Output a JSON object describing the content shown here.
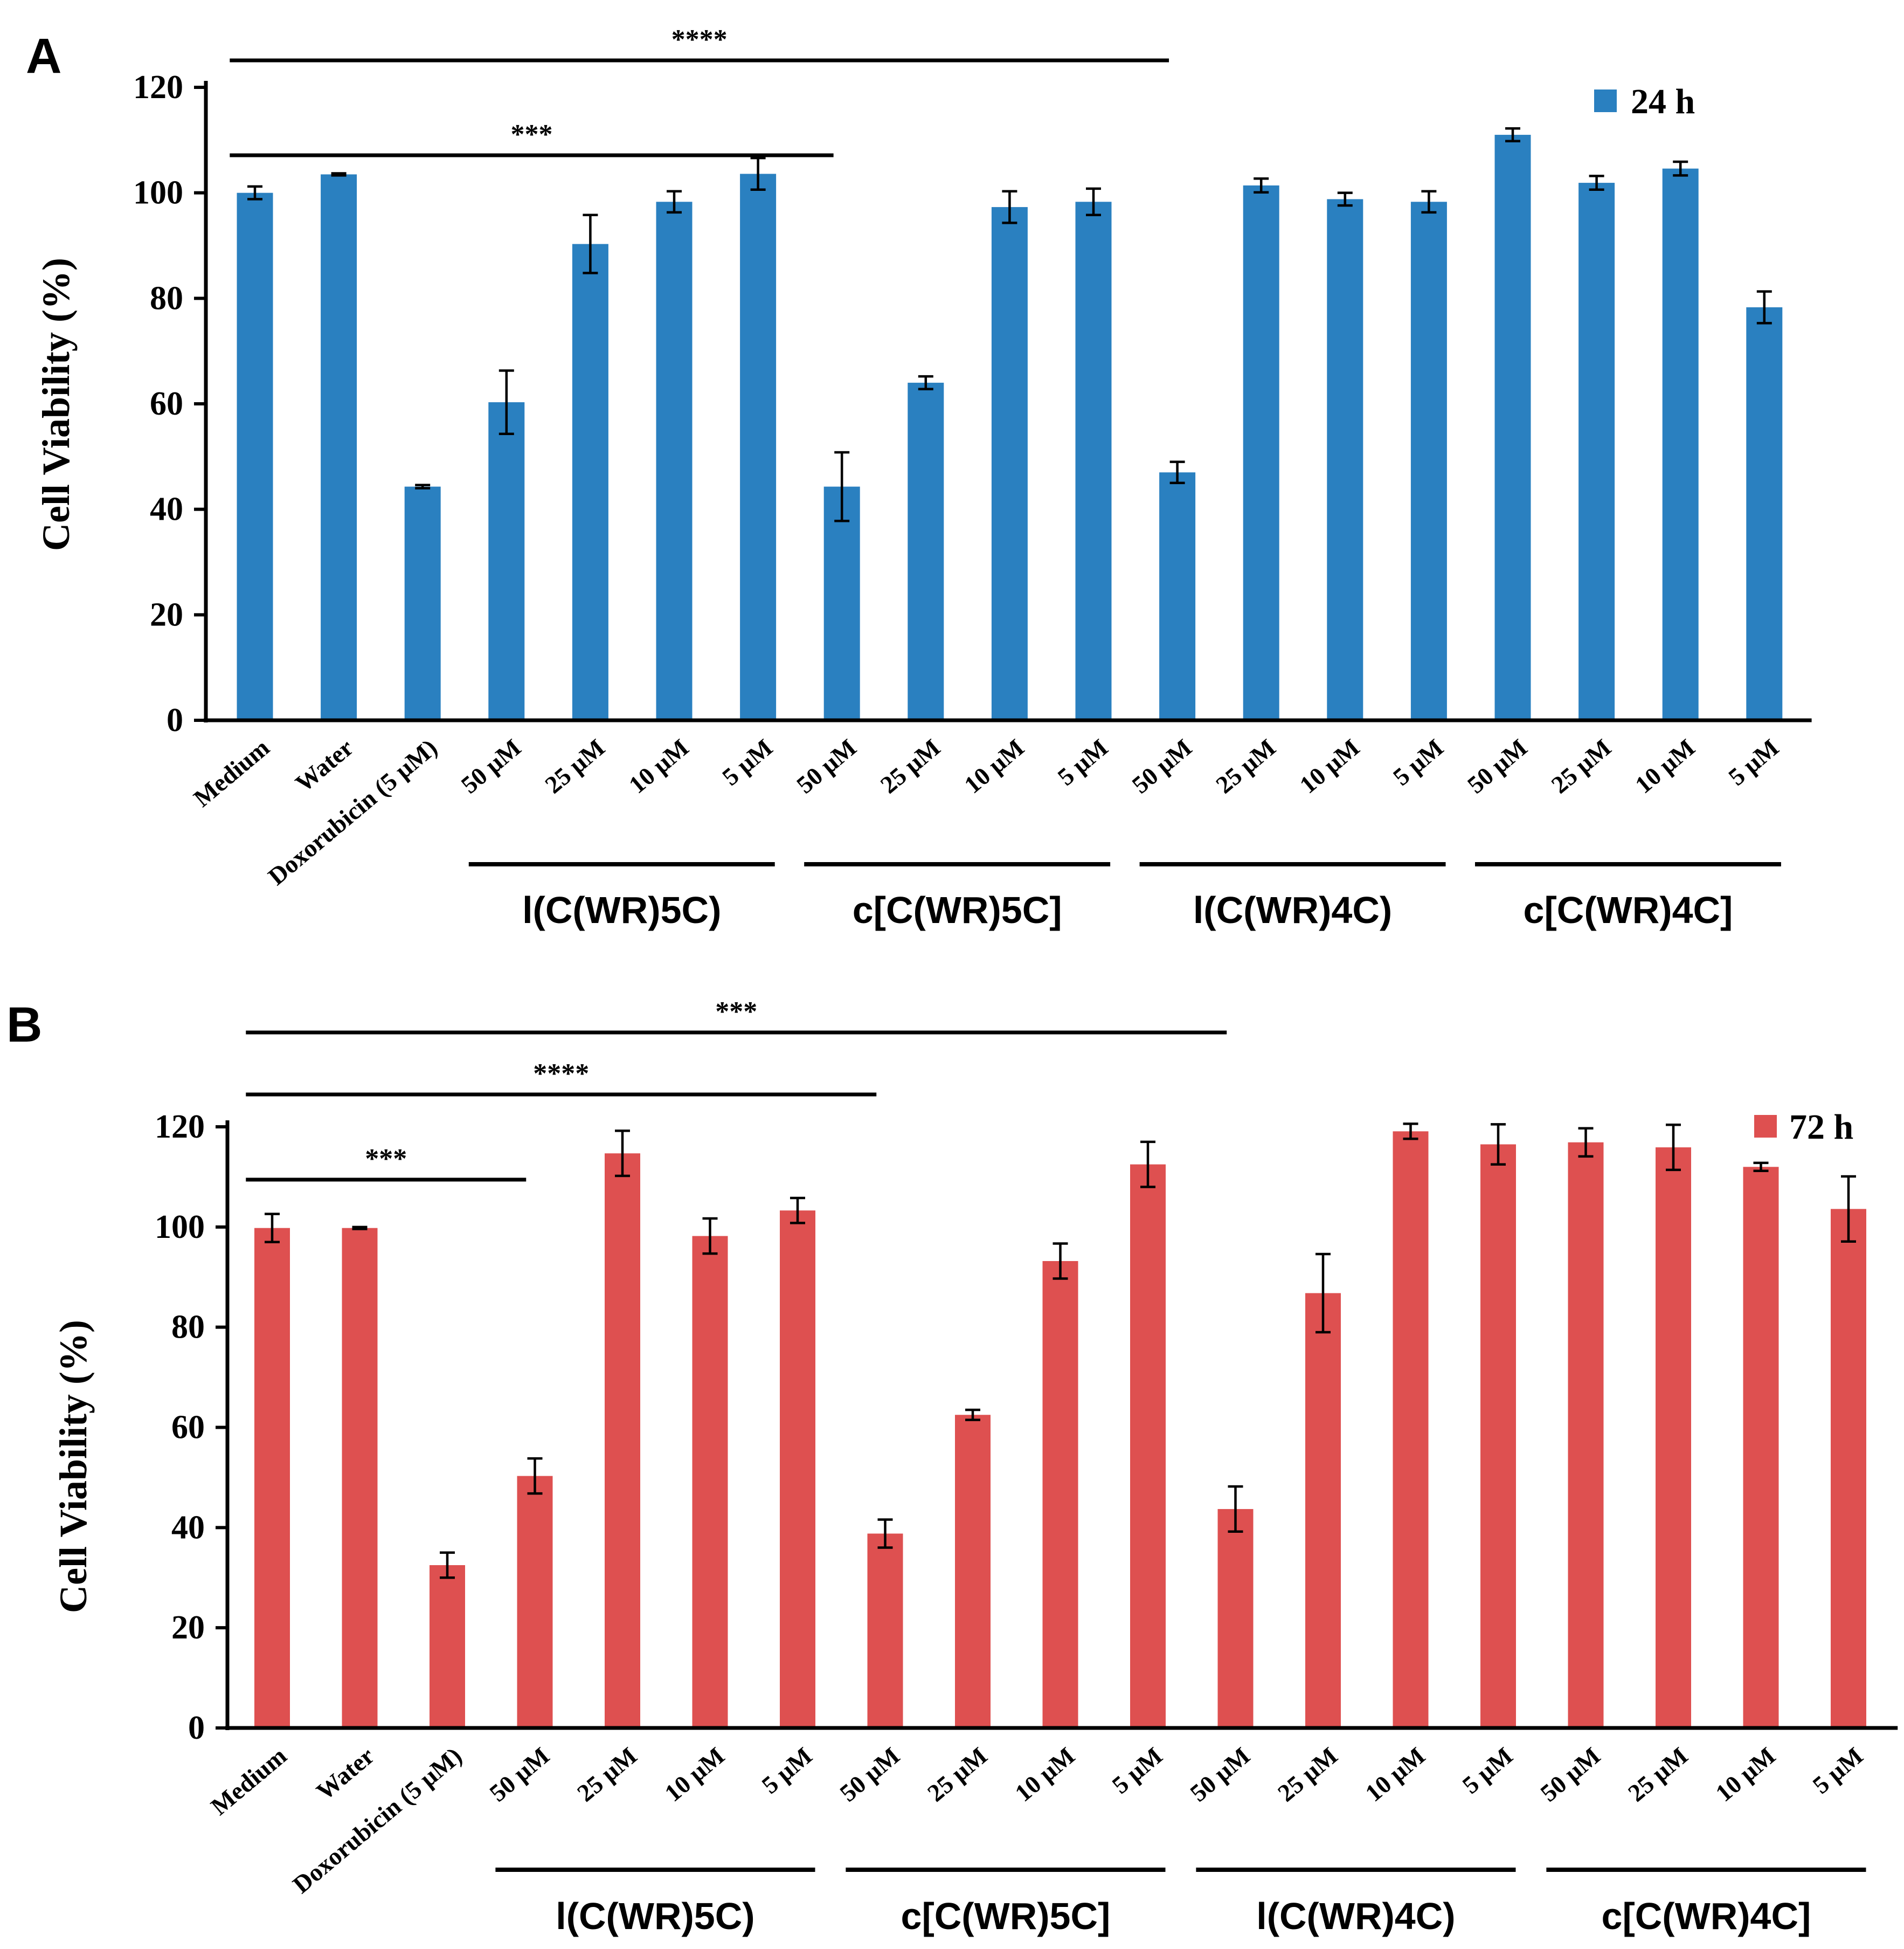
{
  "chart_data": [
    {
      "panel": "A",
      "type": "bar",
      "ylabel": "Cell Viability  (%)",
      "ylim": [
        0,
        120
      ],
      "yticks": [
        "0",
        "20",
        "40",
        "60",
        "80",
        "100",
        "120"
      ],
      "color": "#2a80c0",
      "legend": "24 h",
      "categories": [
        "Medium",
        "Water",
        "Doxorubicin (5 µM)",
        "50 µM",
        "25 µM",
        "10 µM",
        "5 µM",
        "50 µM",
        "25 µM",
        "10 µM",
        "5 µM",
        "50 µM",
        "25 µM",
        "10 µM",
        "5 µM",
        "50 µM",
        "25 µM",
        "10 µM",
        "5 µM"
      ],
      "values": [
        100,
        103.5,
        44.3,
        60.3,
        90.3,
        98.3,
        103.6,
        44.3,
        64,
        97.3,
        98.3,
        47,
        101.4,
        98.8,
        98.3,
        111,
        101.9,
        104.6,
        78.3
      ],
      "errors": [
        1.2,
        0.2,
        0.3,
        6,
        5.5,
        2,
        3,
        6.5,
        1.2,
        3,
        2.5,
        2,
        1.3,
        1.2,
        2,
        1.2,
        1.3,
        1.3,
        3
      ],
      "groups": [
        {
          "label": "l(C(WR)5C)",
          "start": 3,
          "end": 6
        },
        {
          "label": "c[C(WR)5C]",
          "start": 7,
          "end": 10
        },
        {
          "label": "l(C(WR)4C)",
          "start": 11,
          "end": 14
        },
        {
          "label": "c[C(WR)4C]",
          "start": 15,
          "end": 18
        }
      ],
      "significance": [
        {
          "label": "****",
          "from": 0,
          "to": 11
        },
        {
          "label": "***",
          "from": 0,
          "to": 7
        }
      ]
    },
    {
      "panel": "B",
      "type": "bar",
      "ylabel": "Cell Viability  (%)",
      "ylim": [
        0,
        120
      ],
      "yticks": [
        "0",
        "20",
        "40",
        "60",
        "80",
        "100",
        "120"
      ],
      "color": "#de5050",
      "legend": "72 h",
      "categories": [
        "Medium",
        "Water",
        "Doxorubicin (5 µM)",
        "50 µM",
        "25 µM",
        "10 µM",
        "5 µM",
        "50 µM",
        "25 µM",
        "10 µM",
        "5 µM",
        "50 µM",
        "25 µM",
        "10 µM",
        "5 µM",
        "50 µM",
        "25 µM",
        "10 µM",
        "5 µM"
      ],
      "values": [
        99.8,
        99.8,
        32.5,
        50.3,
        114.7,
        98.2,
        103.3,
        38.8,
        62.5,
        93.2,
        112.5,
        43.7,
        86.8,
        119.1,
        116.5,
        116.9,
        115.9,
        112,
        103.6
      ],
      "errors": [
        2.8,
        0.2,
        2.5,
        3.5,
        4.5,
        3.5,
        2.5,
        2.8,
        1,
        3.5,
        4.5,
        4.5,
        7.8,
        1.5,
        4,
        2.8,
        4.5,
        0.8,
        6.5
      ],
      "groups": [
        {
          "label": "l(C(WR)5C)",
          "start": 3,
          "end": 6
        },
        {
          "label": "c[C(WR)5C]",
          "start": 7,
          "end": 10
        },
        {
          "label": "l(C(WR)4C)",
          "start": 11,
          "end": 14
        },
        {
          "label": "c[C(WR)4C]",
          "start": 15,
          "end": 18
        }
      ],
      "significance": [
        {
          "label": "***",
          "from": 0,
          "to": 11
        },
        {
          "label": "****",
          "from": 0,
          "to": 7
        },
        {
          "label": "***",
          "from": 0,
          "to": 3
        }
      ]
    }
  ]
}
